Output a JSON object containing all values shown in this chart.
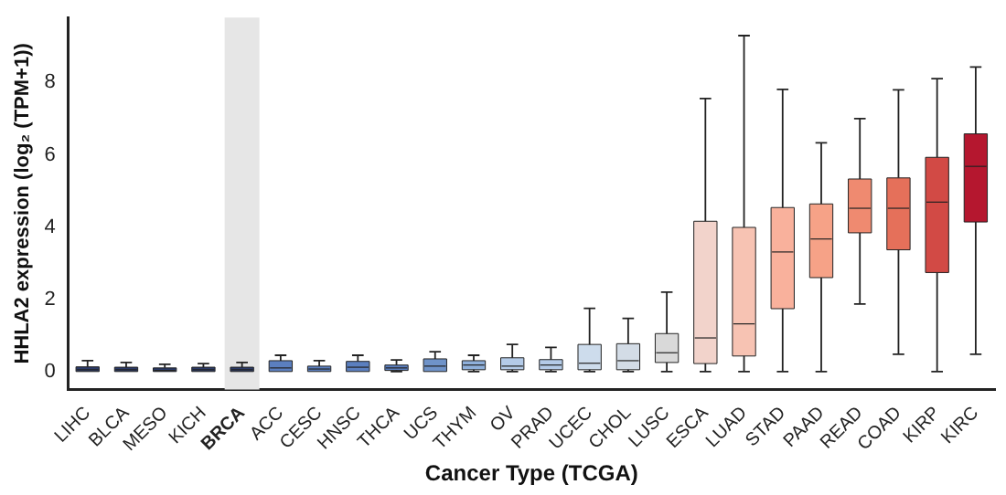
{
  "chart_data": {
    "type": "box",
    "xlabel": "Cancer Type (TCGA)",
    "ylabel": "HHLA2 expression (log₂ (TPM+1))",
    "categories": [
      "LIHC",
      "BLCA",
      "MESO",
      "KICH",
      "BRCA",
      "ACC",
      "CESC",
      "HNSC",
      "THCA",
      "UCS",
      "THYM",
      "OV",
      "PRAD",
      "UCEC",
      "CHOL",
      "LUSC",
      "ESCA",
      "LUAD",
      "STAD",
      "PAAD",
      "READ",
      "COAD",
      "KIRP",
      "KIRC"
    ],
    "colors": [
      "#2b3a67",
      "#2b3a67",
      "#2b3a67",
      "#2b3a67",
      "#2b3a67",
      "#5b7fbf",
      "#5b7fbf",
      "#5b7fbf",
      "#5b7fbf",
      "#6f93c9",
      "#8fb0db",
      "#b4cbe8",
      "#b4cbe8",
      "#cddcec",
      "#d3dce6",
      "#d9d9d9",
      "#f2d3cb",
      "#f7c3b3",
      "#f9b19c",
      "#f6a287",
      "#ef8a70",
      "#e5705a",
      "#d24a45",
      "#b5172f"
    ],
    "boxes": [
      {
        "low": 0,
        "q1": 0,
        "median": 0.05,
        "q3": 0.13,
        "high": 0.3
      },
      {
        "low": 0,
        "q1": 0,
        "median": 0.05,
        "q3": 0.12,
        "high": 0.25
      },
      {
        "low": 0,
        "q1": 0,
        "median": 0.03,
        "q3": 0.1,
        "high": 0.2
      },
      {
        "low": 0,
        "q1": 0,
        "median": 0.05,
        "q3": 0.12,
        "high": 0.22
      },
      {
        "low": 0,
        "q1": 0,
        "median": 0.05,
        "q3": 0.12,
        "high": 0.25
      },
      {
        "low": 0,
        "q1": 0,
        "median": 0.1,
        "q3": 0.3,
        "high": 0.45
      },
      {
        "low": 0,
        "q1": 0,
        "median": 0.07,
        "q3": 0.15,
        "high": 0.3
      },
      {
        "low": 0,
        "q1": 0,
        "median": 0.12,
        "q3": 0.28,
        "high": 0.45
      },
      {
        "low": 0,
        "q1": 0.03,
        "median": 0.1,
        "q3": 0.18,
        "high": 0.32
      },
      {
        "low": 0,
        "q1": 0,
        "median": 0.15,
        "q3": 0.35,
        "high": 0.55
      },
      {
        "low": 0,
        "q1": 0.05,
        "median": 0.18,
        "q3": 0.3,
        "high": 0.45
      },
      {
        "low": 0,
        "q1": 0.05,
        "median": 0.15,
        "q3": 0.38,
        "high": 0.75
      },
      {
        "low": 0,
        "q1": 0.05,
        "median": 0.18,
        "q3": 0.33,
        "high": 0.67
      },
      {
        "low": 0,
        "q1": 0.05,
        "median": 0.23,
        "q3": 0.75,
        "high": 1.75
      },
      {
        "low": 0,
        "q1": 0.05,
        "median": 0.3,
        "q3": 0.77,
        "high": 1.47
      },
      {
        "low": 0,
        "q1": 0.25,
        "median": 0.52,
        "q3": 1.05,
        "high": 2.2
      },
      {
        "low": 0,
        "q1": 0.22,
        "median": 0.93,
        "q3": 4.16,
        "high": 7.56
      },
      {
        "low": 0,
        "q1": 0.43,
        "median": 1.32,
        "q3": 3.99,
        "high": 9.3
      },
      {
        "low": 0,
        "q1": 1.74,
        "median": 3.31,
        "q3": 4.54,
        "high": 7.81
      },
      {
        "low": 0,
        "q1": 2.6,
        "median": 3.67,
        "q3": 4.64,
        "high": 6.33
      },
      {
        "low": 1.87,
        "q1": 3.84,
        "median": 4.52,
        "q3": 5.33,
        "high": 7.0
      },
      {
        "low": 0.48,
        "q1": 3.37,
        "median": 4.52,
        "q3": 5.36,
        "high": 7.8
      },
      {
        "low": 0,
        "q1": 2.74,
        "median": 4.69,
        "q3": 5.93,
        "high": 8.11
      },
      {
        "low": 0.48,
        "q1": 4.14,
        "median": 5.68,
        "q3": 6.58,
        "high": 8.43
      }
    ],
    "bands": [
      {
        "axis": "x",
        "from": "BRCA",
        "to": "BRCA",
        "color": "#e6e6e6"
      }
    ],
    "ylim": [
      -0.5,
      9.8
    ],
    "yticks": [
      0,
      2,
      4,
      6,
      8
    ],
    "grid": false,
    "legend": false
  }
}
